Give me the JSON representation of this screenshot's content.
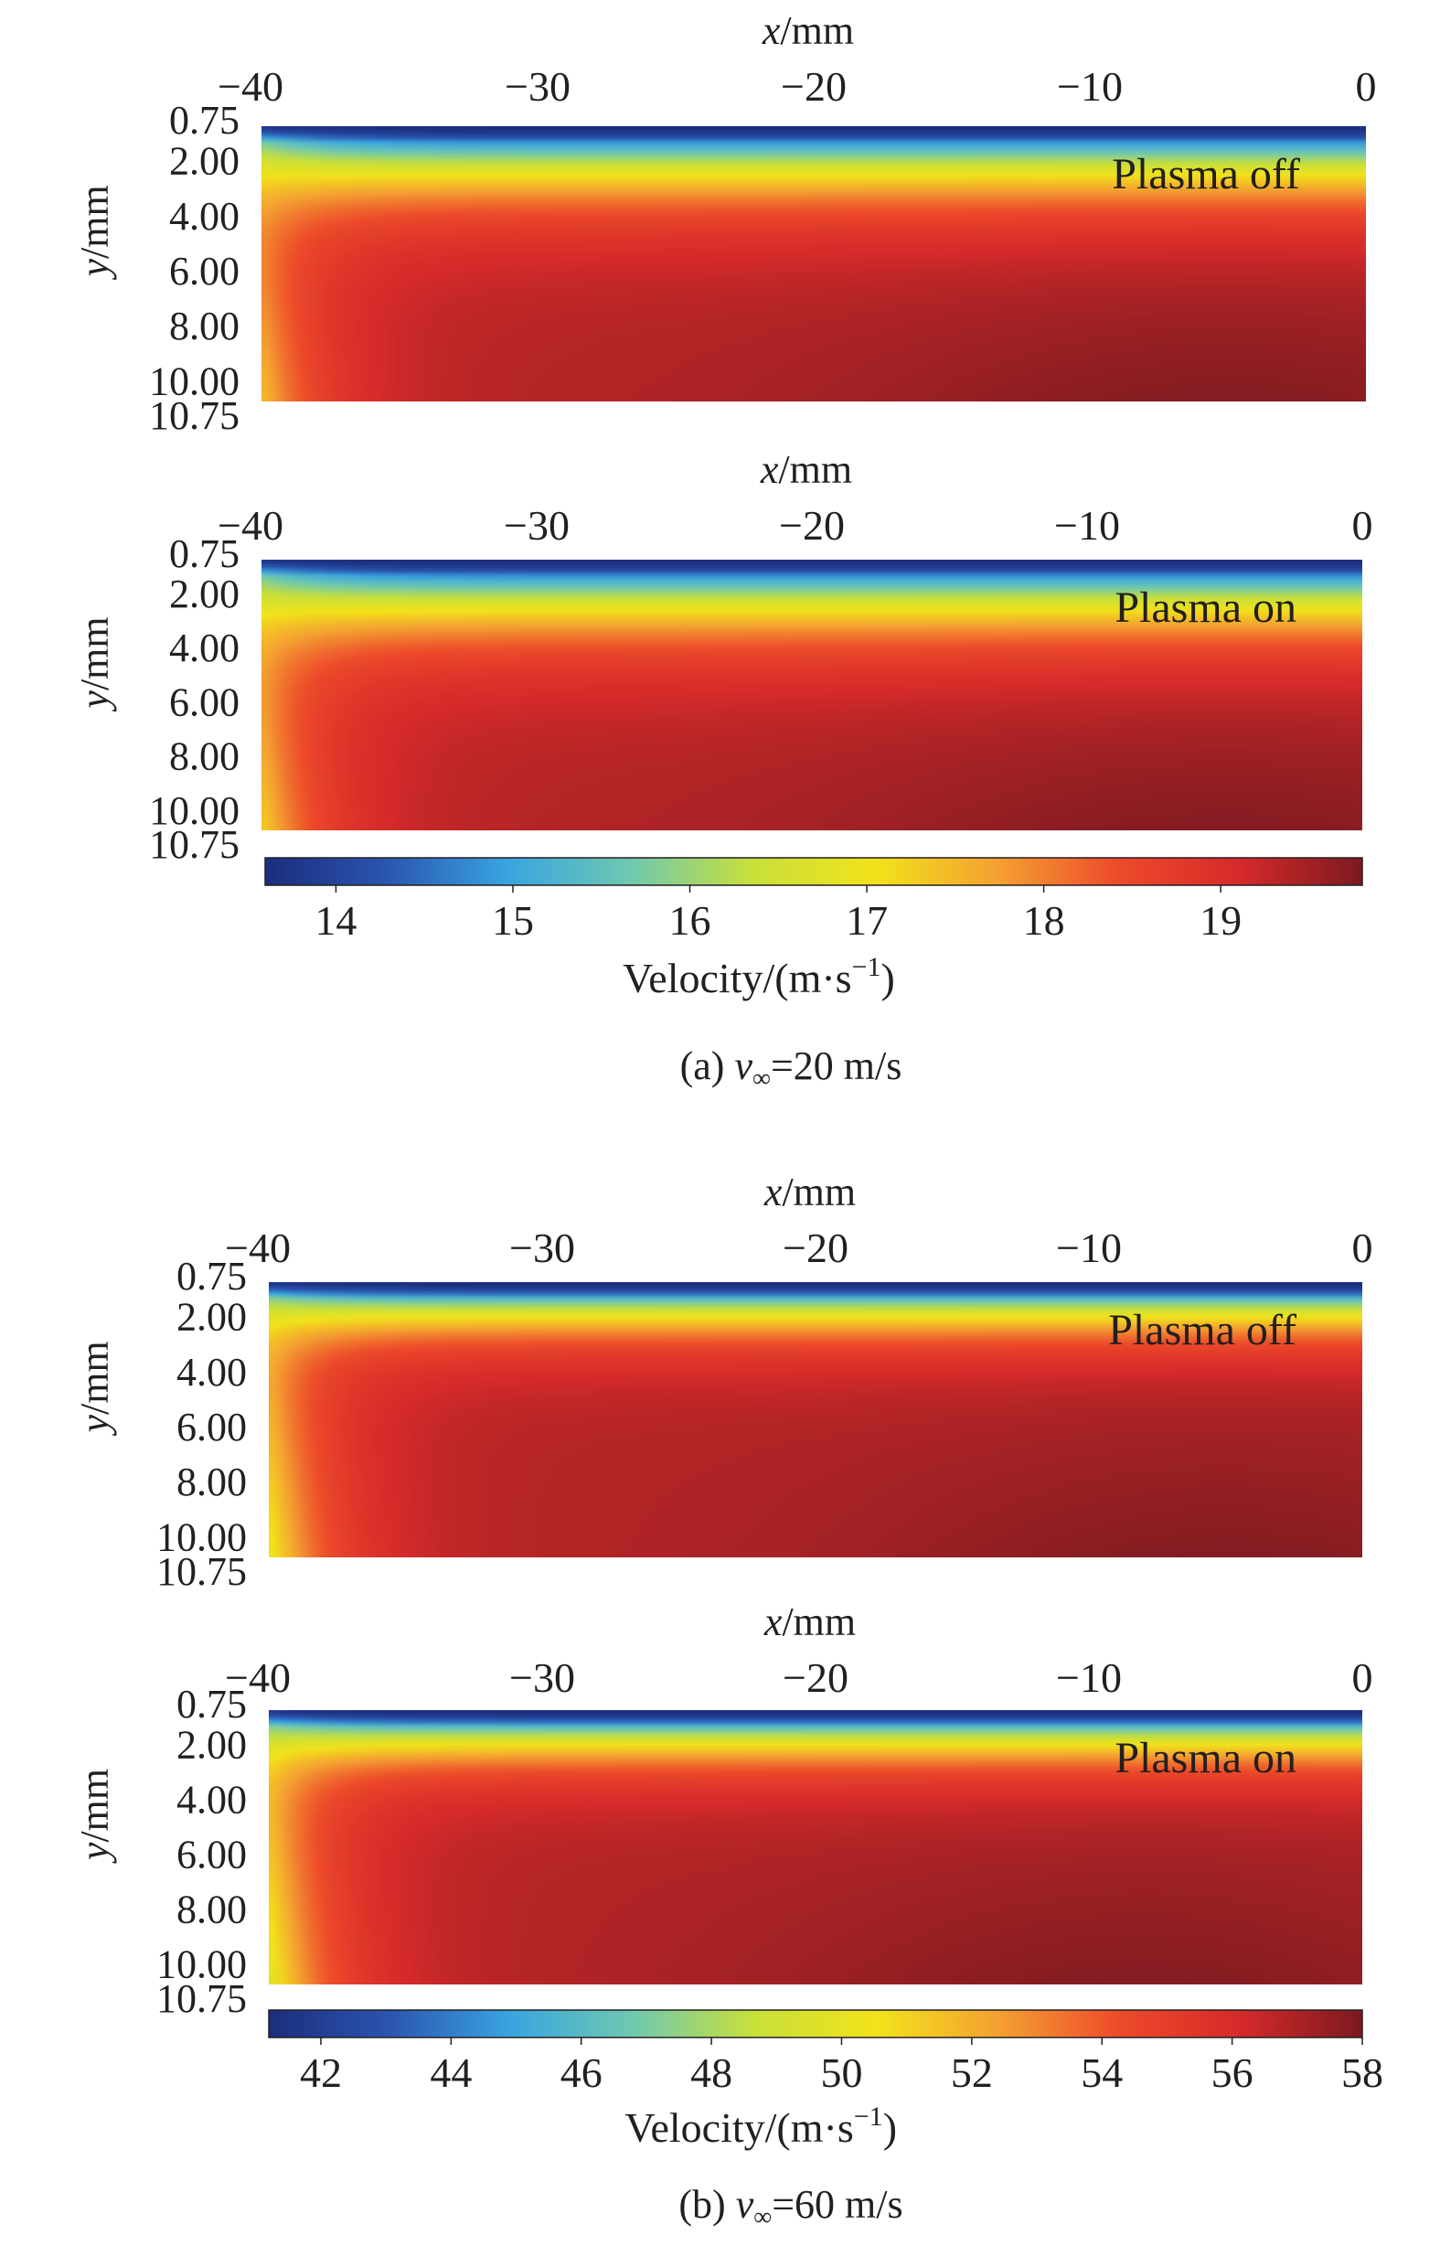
{
  "figure": {
    "caption_a": {
      "prefix": "(a) ",
      "var": "v",
      "sub": "∞",
      "rest": "=20 m/s"
    },
    "caption_b": {
      "prefix": "(b) ",
      "var": "v",
      "sub": "∞",
      "rest": "=60 m/s"
    }
  },
  "colors": {
    "colormap": [
      "#1c2d7c",
      "#2a55b0",
      "#39a5e0",
      "#6fc8b0",
      "#c8e03a",
      "#f2e21a",
      "#f4a132",
      "#ed4a2a",
      "#d42a2a",
      "#7a1a20"
    ]
  },
  "chart_data": [
    {
      "type": "heatmap",
      "label": "Plasma off",
      "panel_group": "a",
      "xlabel": {
        "var": "x",
        "unit": "/mm"
      },
      "ylabel": {
        "var": "y",
        "unit": "/mm"
      },
      "x_ticks": [
        "−40",
        "−30",
        "−20",
        "−10",
        "0"
      ],
      "x_tick_values": [
        -40,
        -30,
        -20,
        -10,
        0
      ],
      "y_ticks": [
        "0.75",
        "2.00",
        "4.00",
        "6.00",
        "8.00",
        "10.00",
        "10.75"
      ],
      "y_tick_values": [
        0.75,
        2,
        4,
        6,
        8,
        10,
        10.75
      ],
      "xlim": [
        -40,
        0
      ],
      "ylim": [
        0.75,
        10.75
      ],
      "field": {
        "vmin": 13.6,
        "vmax": 19.8,
        "edge_start": 0.9,
        "core_frac": 0.42,
        "left_dip": 0.35,
        "peak_x": -5
      }
    },
    {
      "type": "heatmap",
      "label": "Plasma on",
      "panel_group": "a",
      "xlabel": {
        "var": "x",
        "unit": "/mm"
      },
      "ylabel": {
        "var": "y",
        "unit": "/mm"
      },
      "x_ticks": [
        "−40",
        "−30",
        "−20",
        "−10",
        "0"
      ],
      "x_tick_values": [
        -40,
        -30,
        -20,
        -10,
        0
      ],
      "y_ticks": [
        "0.75",
        "2.00",
        "4.00",
        "6.00",
        "8.00",
        "10.00",
        "10.75"
      ],
      "y_tick_values": [
        0.75,
        2,
        4,
        6,
        8,
        10,
        10.75
      ],
      "xlim": [
        -40,
        0
      ],
      "ylim": [
        0.75,
        10.75
      ],
      "field": {
        "vmin": 13.6,
        "vmax": 19.8,
        "edge_start": 0.85,
        "core_frac": 0.44,
        "left_dip": 0.38,
        "peak_x": -5
      }
    },
    {
      "type": "colorbar",
      "label": "Velocity colorbar (a)",
      "title": "Velocity/(m·s",
      "title_sup": "−1",
      "title_end": ")",
      "range": [
        13.6,
        19.8
      ],
      "ticks": [
        "14",
        "15",
        "16",
        "17",
        "18",
        "19"
      ],
      "tick_values": [
        14,
        15,
        16,
        17,
        18,
        19
      ]
    },
    {
      "type": "heatmap",
      "label": "Plasma off",
      "panel_group": "b",
      "xlabel": {
        "var": "x",
        "unit": "/mm"
      },
      "ylabel": {
        "var": "y",
        "unit": "/mm"
      },
      "x_ticks": [
        "−40",
        "−30",
        "−20",
        "−10",
        "0"
      ],
      "x_tick_values": [
        -40,
        -30,
        -20,
        -10,
        0
      ],
      "y_ticks": [
        "0.75",
        "2.00",
        "4.00",
        "6.00",
        "8.00",
        "10.00",
        "10.75"
      ],
      "y_tick_values": [
        0.75,
        2,
        4,
        6,
        8,
        10,
        10.75
      ],
      "xlim": [
        -40,
        0
      ],
      "ylim": [
        0.75,
        10.75
      ],
      "field": {
        "vmin": 41.2,
        "vmax": 58.0,
        "edge_start": 0.92,
        "core_frac": 0.3,
        "left_dip": 0.45,
        "peak_x": -5
      }
    },
    {
      "type": "heatmap",
      "label": "Plasma on",
      "panel_group": "b",
      "xlabel": {
        "var": "x",
        "unit": "/mm"
      },
      "ylabel": {
        "var": "y",
        "unit": "/mm"
      },
      "x_ticks": [
        "−40",
        "−30",
        "−20",
        "−10",
        "0"
      ],
      "x_tick_values": [
        -40,
        -30,
        -20,
        -10,
        0
      ],
      "y_ticks": [
        "0.75",
        "2.00",
        "4.00",
        "6.00",
        "8.00",
        "10.00",
        "10.75"
      ],
      "y_tick_values": [
        0.75,
        2,
        4,
        6,
        8,
        10,
        10.75
      ],
      "xlim": [
        -40,
        0
      ],
      "ylim": [
        0.75,
        10.75
      ],
      "field": {
        "vmin": 41.2,
        "vmax": 58.0,
        "edge_start": 0.92,
        "core_frac": 0.3,
        "left_dip": 0.48,
        "peak_x": -8
      }
    },
    {
      "type": "colorbar",
      "label": "Velocity colorbar (b)",
      "title": "Velocity/(m·s",
      "title_sup": "−1",
      "title_end": ")",
      "range": [
        41.2,
        58.0
      ],
      "ticks": [
        "42",
        "44",
        "46",
        "48",
        "50",
        "52",
        "54",
        "56",
        "58"
      ],
      "tick_values": [
        42,
        44,
        46,
        48,
        50,
        52,
        54,
        56,
        58
      ]
    }
  ]
}
